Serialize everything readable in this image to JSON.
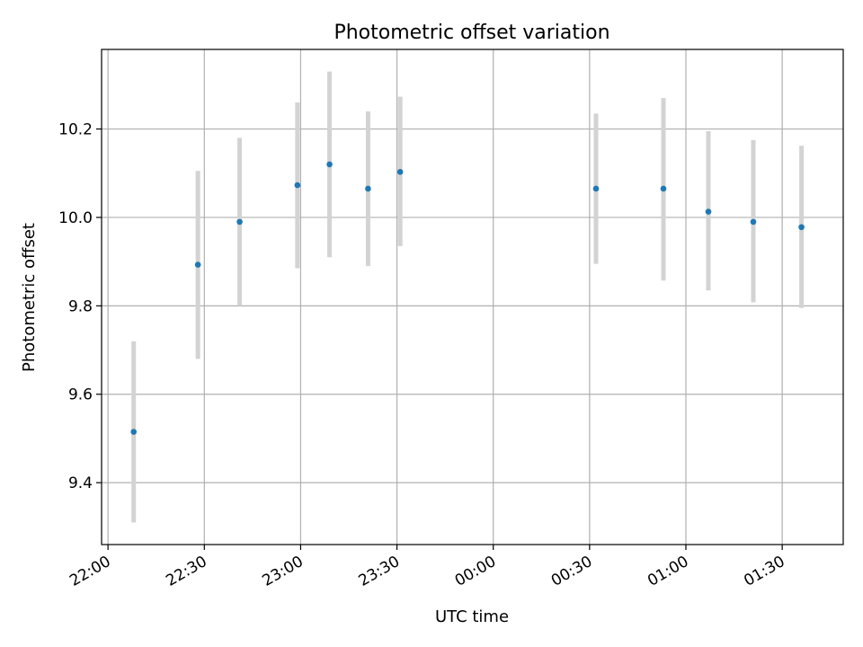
{
  "chart_data": {
    "type": "scatter",
    "title": "Photometric offset variation",
    "xlabel": "UTC time",
    "ylabel": "Photometric offset",
    "grid": true,
    "x_tick_labels": [
      "22:00",
      "22:30",
      "23:00",
      "23:30",
      "00:00",
      "00:30",
      "01:00",
      "01:30"
    ],
    "y_tick_labels": [
      "9.4",
      "9.6",
      "9.8",
      "10.0",
      "10.2"
    ],
    "y_ticks": [
      9.4,
      9.6,
      9.8,
      10.0,
      10.2
    ],
    "ylim": [
      9.26,
      10.38
    ],
    "xlim": [
      "21:58",
      "23:55+01:49"
    ],
    "colors": {
      "point": "#1f77b4",
      "errorbar": "#d3d3d3",
      "grid": "#b0b0b0"
    },
    "series": [
      {
        "points": [
          {
            "x": "22:08",
            "y": 9.515,
            "ylow": 9.31,
            "yhigh": 9.72
          },
          {
            "x": "22:28",
            "y": 9.893,
            "ylow": 9.68,
            "yhigh": 10.105
          },
          {
            "x": "22:41",
            "y": 9.99,
            "ylow": 9.8,
            "yhigh": 10.18
          },
          {
            "x": "22:59",
            "y": 10.073,
            "ylow": 9.885,
            "yhigh": 10.26
          },
          {
            "x": "23:09",
            "y": 10.12,
            "ylow": 9.91,
            "yhigh": 10.33
          },
          {
            "x": "23:21",
            "y": 10.065,
            "ylow": 9.89,
            "yhigh": 10.24
          },
          {
            "x": "23:31",
            "y": 10.103,
            "ylow": 9.935,
            "yhigh": 10.273
          },
          {
            "x": "00:32",
            "y": 10.065,
            "ylow": 9.895,
            "yhigh": 10.235
          },
          {
            "x": "00:53",
            "y": 10.065,
            "ylow": 9.857,
            "yhigh": 10.27
          },
          {
            "x": "01:07",
            "y": 10.013,
            "ylow": 9.835,
            "yhigh": 10.195
          },
          {
            "x": "01:21",
            "y": 9.99,
            "ylow": 9.808,
            "yhigh": 10.175
          },
          {
            "x": "01:36",
            "y": 9.978,
            "ylow": 9.795,
            "yhigh": 10.162
          }
        ]
      }
    ]
  }
}
